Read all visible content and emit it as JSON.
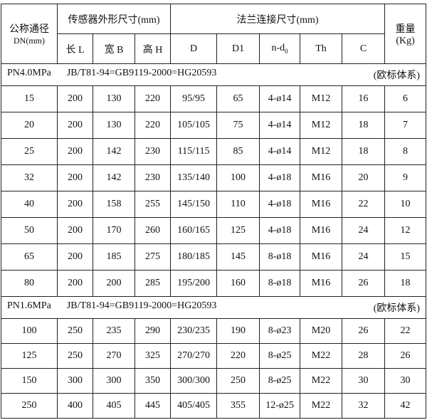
{
  "header": {
    "dn_label": "公称通径",
    "dn_unit": "DN(mm)",
    "sensor_group": "传感器外形尺寸(mm)",
    "flange_group": "法兰连接尺寸(mm)",
    "weight_label": "重量",
    "weight_unit": "(Kg)",
    "columns": [
      "长 L",
      "宽 B",
      "高 H",
      "D",
      "D1",
      "n-d",
      "Th",
      "C"
    ],
    "nd_sub": "0"
  },
  "sections": [
    {
      "pressure": "PN4.0MPa",
      "standard": "JB/T81-94=GB9119-2000=HG20593",
      "system": "(欧标体系)",
      "rows": [
        [
          "15",
          "200",
          "130",
          "220",
          "95/95",
          "65",
          "4-ø14",
          "M12",
          "16",
          "6"
        ],
        [
          "20",
          "200",
          "130",
          "220",
          "105/105",
          "75",
          "4-ø14",
          "M12",
          "18",
          "7"
        ],
        [
          "25",
          "200",
          "142",
          "230",
          "115/115",
          "85",
          "4-ø14",
          "M12",
          "18",
          "8"
        ],
        [
          "32",
          "200",
          "142",
          "230",
          "135/140",
          "100",
          "4-ø18",
          "M16",
          "20",
          "9"
        ],
        [
          "40",
          "200",
          "158",
          "255",
          "145/150",
          "110",
          "4-ø18",
          "M16",
          "22",
          "10"
        ],
        [
          "50",
          "200",
          "170",
          "260",
          "160/165",
          "125",
          "4-ø18",
          "M16",
          "24",
          "12"
        ],
        [
          "65",
          "200",
          "185",
          "275",
          "180/185",
          "145",
          "8-ø18",
          "M16",
          "24",
          "15"
        ],
        [
          "80",
          "200",
          "200",
          "285",
          "195/200",
          "160",
          "8-ø18",
          "M16",
          "26",
          "18"
        ]
      ]
    },
    {
      "pressure": "PN1.6MPa",
      "standard": "JB/T81-94=GB9119-2000=HG20593",
      "system": "(欧标体系)",
      "rows": [
        [
          "100",
          "250",
          "235",
          "290",
          "230/235",
          "190",
          "8-ø23",
          "M20",
          "26",
          "22"
        ],
        [
          "125",
          "250",
          "270",
          "325",
          "270/270",
          "220",
          "8-ø25",
          "M22",
          "28",
          "26"
        ],
        [
          "150",
          "300",
          "300",
          "350",
          "300/300",
          "250",
          "8-ø25",
          "M22",
          "30",
          "30"
        ],
        [
          "250",
          "400",
          "405",
          "445",
          "405/405",
          "355",
          "12-ø25",
          "M22",
          "32",
          "42"
        ]
      ]
    }
  ]
}
